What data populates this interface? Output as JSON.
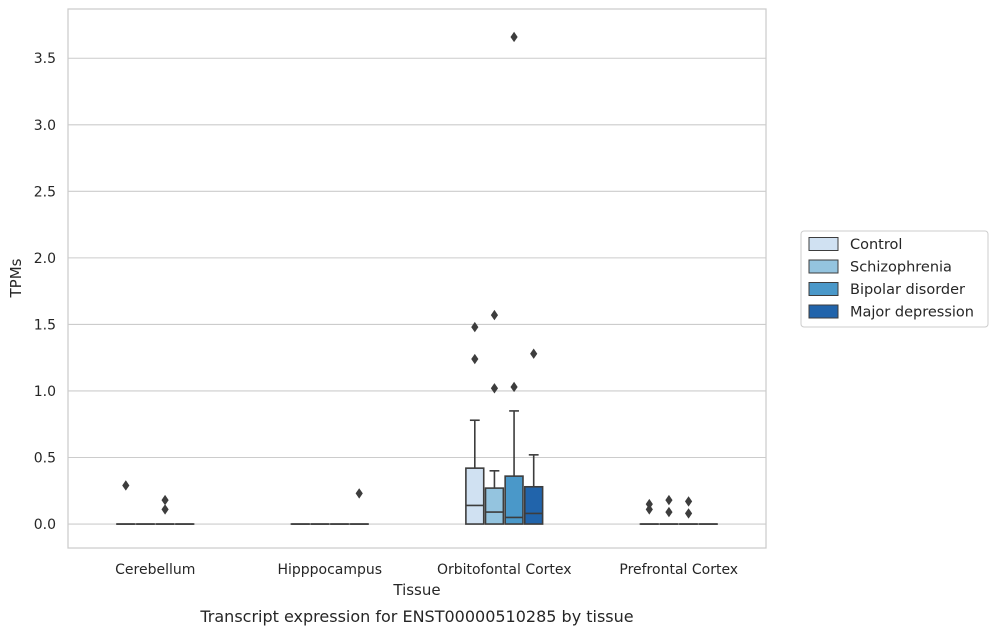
{
  "chart_data": {
    "type": "box",
    "caption": "Transcript expression for ENST00000510285 by tissue",
    "xlabel": "Tissue",
    "ylabel": "TPMs",
    "ylim": [
      -0.18,
      3.87
    ],
    "yticks": [
      0.0,
      0.5,
      1.0,
      1.5,
      2.0,
      2.5,
      3.0,
      3.5
    ],
    "ytick_labels": [
      "0.0",
      "0.5",
      "1.0",
      "1.5",
      "2.0",
      "2.5",
      "3.0",
      "3.5"
    ],
    "grid": "horizontal",
    "legend_position": "right-center",
    "categories": [
      "Cerebellum",
      "Hipppocampus",
      "Orbitofontal Cortex",
      "Prefrontal Cortex"
    ],
    "series": [
      {
        "name": "Control",
        "color": "#d0e1f2",
        "boxes": [
          {
            "q1": 0,
            "median": 0,
            "q3": 0,
            "whisker_low": 0,
            "whisker_high": 0,
            "outliers": [
              0.29
            ]
          },
          {
            "q1": 0,
            "median": 0,
            "q3": 0,
            "whisker_low": 0,
            "whisker_high": 0,
            "outliers": []
          },
          {
            "q1": 0,
            "median": 0.14,
            "q3": 0.42,
            "whisker_low": 0,
            "whisker_high": 0.78,
            "outliers": [
              1.24,
              1.48
            ]
          },
          {
            "q1": 0,
            "median": 0,
            "q3": 0,
            "whisker_low": 0,
            "whisker_high": 0,
            "outliers": [
              0.11,
              0.15
            ]
          }
        ]
      },
      {
        "name": "Schizophrenia",
        "color": "#94c4df",
        "boxes": [
          {
            "q1": 0,
            "median": 0,
            "q3": 0,
            "whisker_low": 0,
            "whisker_high": 0,
            "outliers": []
          },
          {
            "q1": 0,
            "median": 0,
            "q3": 0,
            "whisker_low": 0,
            "whisker_high": 0,
            "outliers": []
          },
          {
            "q1": 0,
            "median": 0.09,
            "q3": 0.27,
            "whisker_low": 0,
            "whisker_high": 0.4,
            "outliers": [
              1.02,
              1.57
            ]
          },
          {
            "q1": 0,
            "median": 0,
            "q3": 0,
            "whisker_low": 0,
            "whisker_high": 0,
            "outliers": [
              0.09,
              0.18
            ]
          }
        ]
      },
      {
        "name": "Bipolar disorder",
        "color": "#4a98c9",
        "boxes": [
          {
            "q1": 0,
            "median": 0,
            "q3": 0,
            "whisker_low": 0,
            "whisker_high": 0,
            "outliers": [
              0.11,
              0.18
            ]
          },
          {
            "q1": 0,
            "median": 0,
            "q3": 0,
            "whisker_low": 0,
            "whisker_high": 0,
            "outliers": []
          },
          {
            "q1": 0,
            "median": 0.05,
            "q3": 0.36,
            "whisker_low": 0,
            "whisker_high": 0.85,
            "outliers": [
              1.03,
              3.66
            ]
          },
          {
            "q1": 0,
            "median": 0,
            "q3": 0,
            "whisker_low": 0,
            "whisker_high": 0,
            "outliers": [
              0.08,
              0.17
            ]
          }
        ]
      },
      {
        "name": "Major depression",
        "color": "#2164ab",
        "boxes": [
          {
            "q1": 0,
            "median": 0,
            "q3": 0,
            "whisker_low": 0,
            "whisker_high": 0,
            "outliers": []
          },
          {
            "q1": 0,
            "median": 0,
            "q3": 0,
            "whisker_low": 0,
            "whisker_high": 0,
            "outliers": [
              0.23
            ]
          },
          {
            "q1": 0,
            "median": 0.08,
            "q3": 0.28,
            "whisker_low": 0,
            "whisker_high": 0.52,
            "outliers": [
              1.28
            ]
          },
          {
            "q1": 0,
            "median": 0,
            "q3": 0,
            "whisker_low": 0,
            "whisker_high": 0,
            "outliers": []
          }
        ]
      }
    ]
  }
}
